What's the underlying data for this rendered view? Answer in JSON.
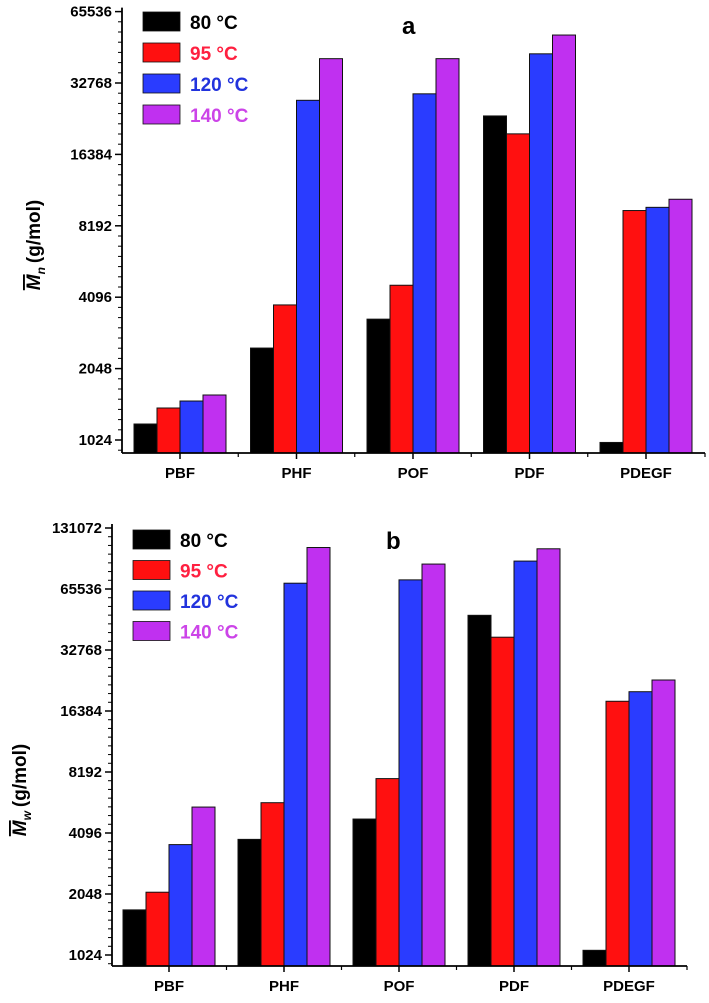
{
  "chart_data": [
    {
      "type": "bar",
      "panel_label": "a",
      "ylabel_symbol": "M",
      "ylabel_subscript": "n",
      "ylabel_unit": "(g/mol)",
      "yscale": "log2",
      "ylim": [
        905,
        65536
      ],
      "yticks": [
        "1024",
        "2048",
        "4096",
        "8192",
        "16384",
        "32768",
        "65536"
      ],
      "categories": [
        "PBF",
        "PHF",
        "POF",
        "PDF",
        "PDEGF"
      ],
      "legend_position": "top-left",
      "series": [
        {
          "name": "80 °C",
          "color": "#000000",
          "values": [
            1196,
            2500,
            3310,
            23800,
            1000
          ]
        },
        {
          "name": "95 °C",
          "color": "#ff1010",
          "values": [
            1397,
            3800,
            4600,
            20000,
            9500
          ]
        },
        {
          "name": "120 °C",
          "color": "#2a3cff",
          "values": [
            1495,
            27700,
            29500,
            43500,
            9800
          ]
        },
        {
          "name": "140 °C",
          "color": "#c030f0",
          "values": [
            1585,
            41500,
            41500,
            52200,
            10600
          ]
        }
      ]
    },
    {
      "type": "bar",
      "panel_label": "b",
      "ylabel_symbol": "M",
      "ylabel_subscript": "w",
      "ylabel_unit": "(g/mol)",
      "yscale": "log2",
      "ylim": [
        905,
        131072
      ],
      "yticks": [
        "1024",
        "2048",
        "4096",
        "8192",
        "16384",
        "32768",
        "65536",
        "131072"
      ],
      "categories": [
        "PBF",
        "PHF",
        "POF",
        "PDF",
        "PDEGF"
      ],
      "legend_position": "top-left",
      "series": [
        {
          "name": "80 °C",
          "color": "#000000",
          "values": [
            1710,
            3810,
            4800,
            48600,
            1080
          ]
        },
        {
          "name": "95 °C",
          "color": "#ff1010",
          "values": [
            2090,
            5780,
            7600,
            37900,
            18300
          ]
        },
        {
          "name": "120 °C",
          "color": "#2a3cff",
          "values": [
            3590,
            70000,
            72700,
            90000,
            20400
          ]
        },
        {
          "name": "140 °C",
          "color": "#c030f0",
          "values": [
            5500,
            105000,
            87000,
            103500,
            23300
          ]
        }
      ]
    }
  ]
}
